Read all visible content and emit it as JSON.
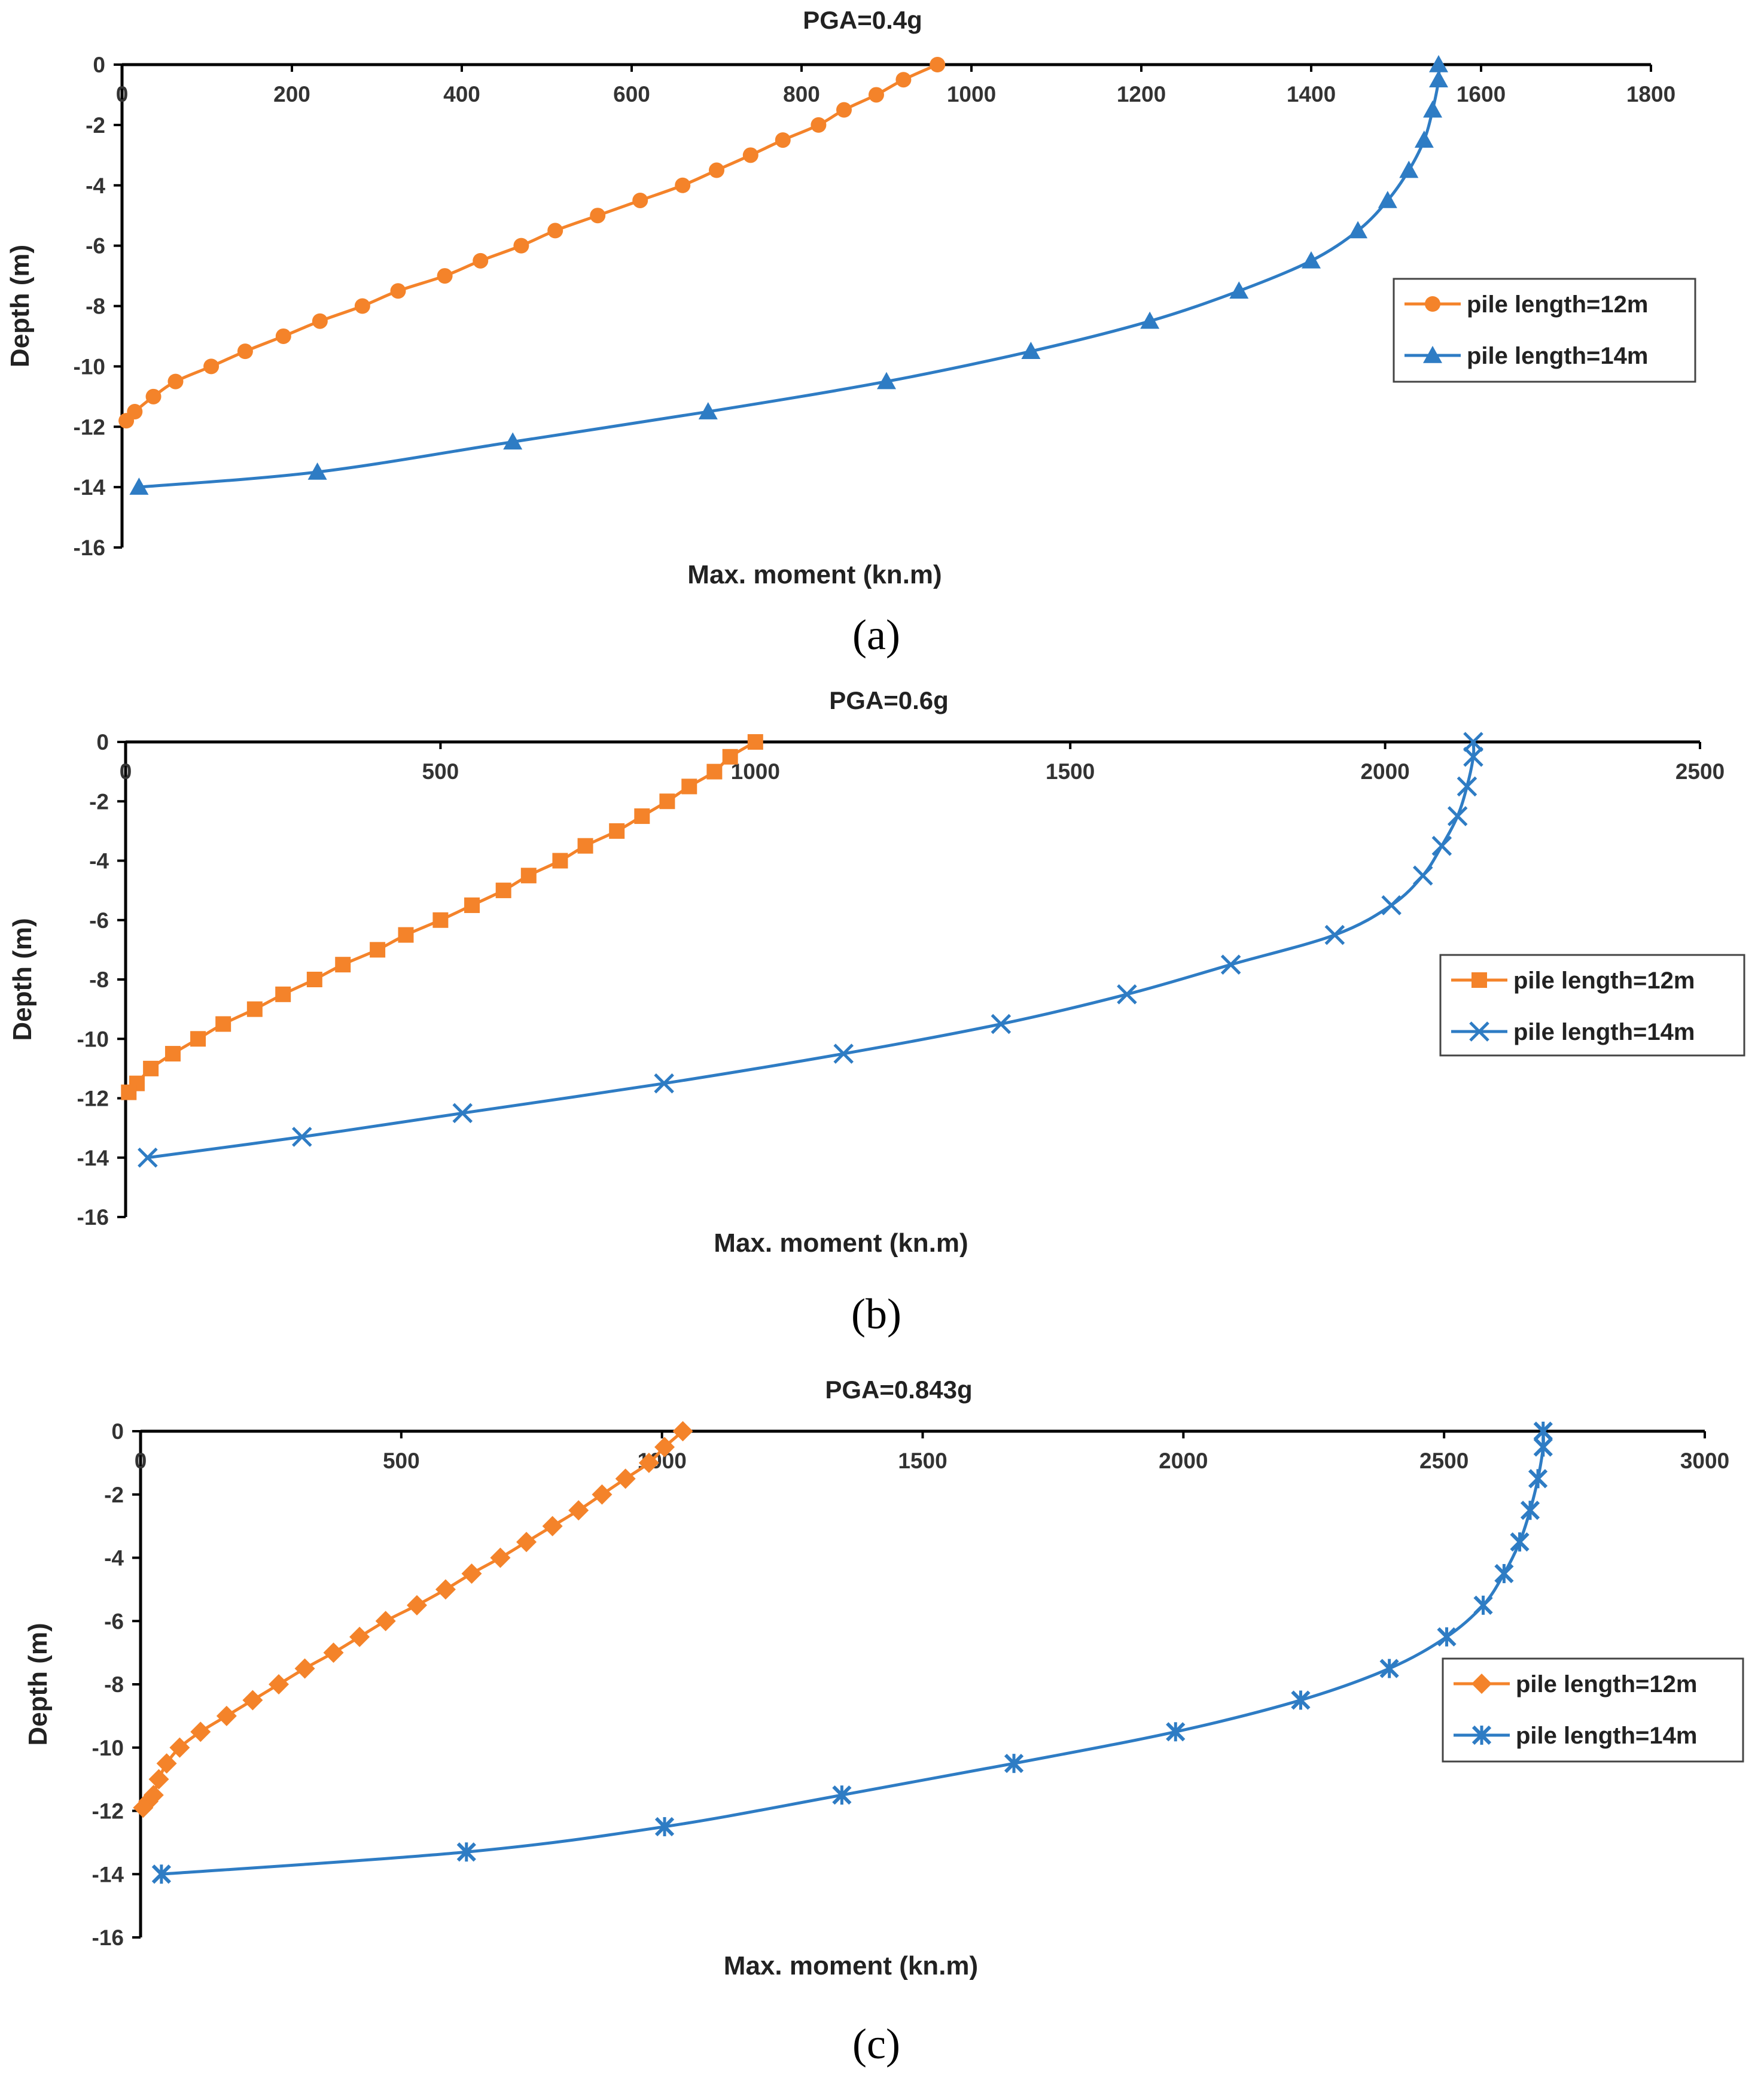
{
  "chart_data": [
    {
      "type": "line",
      "panel_label": "(a)",
      "title": "PGA=0.4g",
      "xlabel": "Max. moment (kn.m)",
      "ylabel": "Depth (m)",
      "xlim": [
        0,
        1800
      ],
      "ylim": [
        -16,
        0
      ],
      "x_ticks": [
        "0",
        "200",
        "400",
        "600",
        "800",
        "1000",
        "1200",
        "1400",
        "1600",
        "1800"
      ],
      "y_ticks": [
        "0",
        "-2",
        "-4",
        "-6",
        "-8",
        "-10",
        "-12",
        "-14",
        "-16"
      ],
      "legend_position": "right-middle",
      "series": [
        {
          "name": "pile length=12m",
          "color": "#F4832A",
          "marker": "circle",
          "x": [
            960,
            920,
            888,
            850,
            820,
            778,
            740,
            700,
            660,
            610,
            560,
            510,
            470,
            422,
            380,
            325,
            283,
            233,
            190,
            145,
            105,
            63,
            37,
            15,
            5
          ],
          "y": [
            0,
            -0.5,
            -1,
            -1.5,
            -2,
            -2.5,
            -3,
            -3.5,
            -4,
            -4.5,
            -5,
            -5.5,
            -6,
            -6.5,
            -7,
            -7.5,
            -8,
            -8.5,
            -9,
            -9.5,
            -10,
            -10.5,
            -11,
            -11.5,
            -11.8
          ]
        },
        {
          "name": "pile length=14m",
          "color": "#2E7CC4",
          "marker": "triangle",
          "x": [
            1550,
            1550,
            1543,
            1533,
            1515,
            1490,
            1455,
            1400,
            1315,
            1210,
            1070,
            900,
            690,
            460,
            230,
            20
          ],
          "y": [
            0,
            -0.5,
            -1.5,
            -2.5,
            -3.5,
            -4.5,
            -5.5,
            -6.5,
            -7.5,
            -8.5,
            -9.5,
            -10.5,
            -11.5,
            -12.5,
            -13.5,
            -14
          ]
        }
      ]
    },
    {
      "type": "line",
      "panel_label": "(b)",
      "title": "PGA=0.6g",
      "xlabel": "Max. moment (kn.m)",
      "ylabel": "Depth (m)",
      "xlim": [
        0,
        2500
      ],
      "ylim": [
        -16,
        0
      ],
      "x_ticks": [
        "0",
        "500",
        "1000",
        "1500",
        "2000",
        "2500"
      ],
      "y_ticks": [
        "0",
        "-2",
        "-4",
        "-6",
        "-8",
        "-10",
        "-12",
        "-14",
        "-16"
      ],
      "legend_position": "right-middle",
      "series": [
        {
          "name": "pile length=12m",
          "color": "#F4832A",
          "marker": "square",
          "x": [
            1000,
            960,
            935,
            895,
            860,
            820,
            780,
            730,
            690,
            640,
            600,
            550,
            500,
            445,
            400,
            345,
            300,
            250,
            205,
            155,
            115,
            75,
            40,
            18,
            5
          ],
          "y": [
            0,
            -0.5,
            -1,
            -1.5,
            -2,
            -2.5,
            -3,
            -3.5,
            -4,
            -4.5,
            -5,
            -5.5,
            -6,
            -6.5,
            -7,
            -7.5,
            -8,
            -8.5,
            -9,
            -9.5,
            -10,
            -10.5,
            -11,
            -11.5,
            -11.8
          ]
        },
        {
          "name": "pile length=14m",
          "color": "#2E7CC4",
          "marker": "x",
          "x": [
            2140,
            2140,
            2130,
            2115,
            2090,
            2060,
            2010,
            1920,
            1755,
            1590,
            1390,
            1140,
            855,
            535,
            280,
            35
          ],
          "y": [
            0,
            -0.5,
            -1.5,
            -2.5,
            -3.5,
            -4.5,
            -5.5,
            -6.5,
            -7.5,
            -8.5,
            -9.5,
            -10.5,
            -11.5,
            -12.5,
            -13.3,
            -14
          ]
        }
      ]
    },
    {
      "type": "line",
      "panel_label": "(c)",
      "title": "PGA=0.843g",
      "xlabel": "Max. moment (kn.m)",
      "ylabel": "Depth (m)",
      "xlim": [
        0,
        3000
      ],
      "ylim": [
        -16,
        0
      ],
      "x_ticks": [
        "0",
        "500",
        "1000",
        "1500",
        "2000",
        "2500",
        "3000"
      ],
      "y_ticks": [
        "0",
        "-2",
        "-4",
        "-6",
        "-8",
        "-10",
        "-12",
        "-14",
        "-16"
      ],
      "legend_position": "right-middle",
      "series": [
        {
          "name": "pile length=12m",
          "color": "#F4832A",
          "marker": "diamond",
          "x": [
            1040,
            1005,
            975,
            930,
            885,
            840,
            790,
            740,
            690,
            635,
            585,
            530,
            470,
            420,
            370,
            315,
            265,
            215,
            165,
            115,
            75,
            50,
            35,
            25,
            15,
            5
          ],
          "y": [
            0,
            -0.5,
            -1,
            -1.5,
            -2,
            -2.5,
            -3,
            -3.5,
            -4,
            -4.5,
            -5,
            -5.5,
            -6,
            -6.5,
            -7,
            -7.5,
            -8,
            -8.5,
            -9,
            -9.5,
            -10,
            -10.5,
            -11,
            -11.5,
            -11.7,
            -11.9
          ]
        },
        {
          "name": "pile length=14m",
          "color": "#2E7CC4",
          "marker": "star",
          "x": [
            2690,
            2690,
            2680,
            2665,
            2645,
            2615,
            2575,
            2505,
            2395,
            2225,
            1985,
            1675,
            1345,
            1005,
            625,
            40
          ],
          "y": [
            0,
            -0.5,
            -1.5,
            -2.5,
            -3.5,
            -4.5,
            -5.5,
            -6.5,
            -7.5,
            -8.5,
            -9.5,
            -10.5,
            -11.5,
            -12.5,
            -13.3,
            -14
          ]
        }
      ]
    }
  ]
}
